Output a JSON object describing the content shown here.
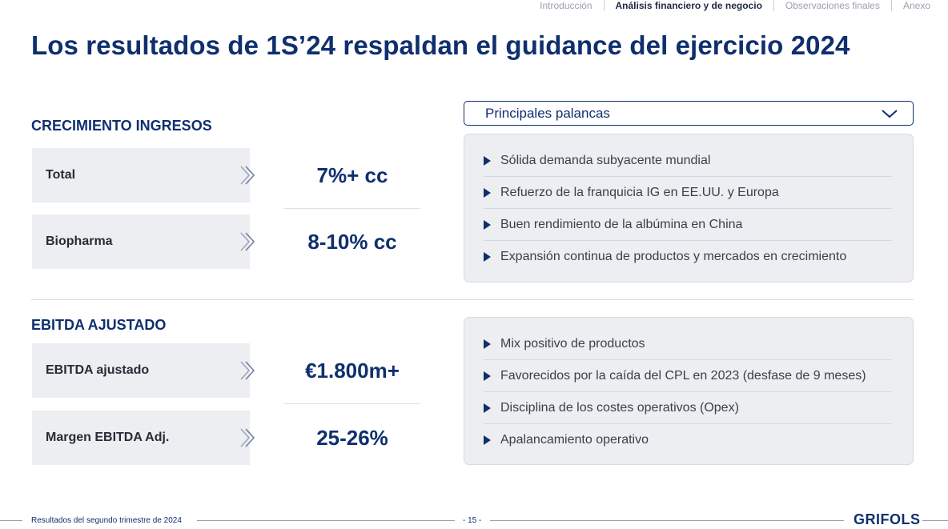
{
  "nav": {
    "items": [
      {
        "label": "Introducción",
        "active": false
      },
      {
        "label": "Análisis financiero y de negocio",
        "active": true
      },
      {
        "label": "Observaciones finales",
        "active": false
      },
      {
        "label": "Anexo",
        "active": false
      }
    ]
  },
  "title": "Los resultados de 1S’24 respaldan el guidance del ejercicio 2024",
  "revenue": {
    "heading": "CRECIMIENTO INGRESOS",
    "rows": [
      {
        "label": "Total",
        "value": "7%+ cc"
      },
      {
        "label": "Biopharma",
        "value": "8-10% cc"
      }
    ]
  },
  "ebitda": {
    "heading": "EBITDA AJUSTADO",
    "rows": [
      {
        "label": "EBITDA ajustado",
        "value": "€1.800m+"
      },
      {
        "label": "Margen EBITDA Adj.",
        "value": "25-26%"
      }
    ]
  },
  "levers": {
    "dropdown_label": "Principales palancas",
    "revenue_bullets": [
      "Sólida demanda subyacente mundial",
      "Refuerzo de la franquicia IG en EE.UU. y Europa",
      "Buen rendimiento de la albúmina en China",
      "Expansión continua de productos y mercados en crecimiento"
    ],
    "ebitda_bullets": [
      "Mix positivo de productos",
      "Favorecidos por la caída del CPL en 2023 (desfase de 9 meses)",
      "Disciplina de los costes operativos (Opex)",
      "Apalancamiento operativo"
    ]
  },
  "footer": {
    "text": "Resultados del segundo trimestre de 2024",
    "page": "- 15 -",
    "logo": "GRIFOLS"
  },
  "colors": {
    "brand_navy": "#0f2f6e",
    "panel_gray": "#eceef1"
  }
}
